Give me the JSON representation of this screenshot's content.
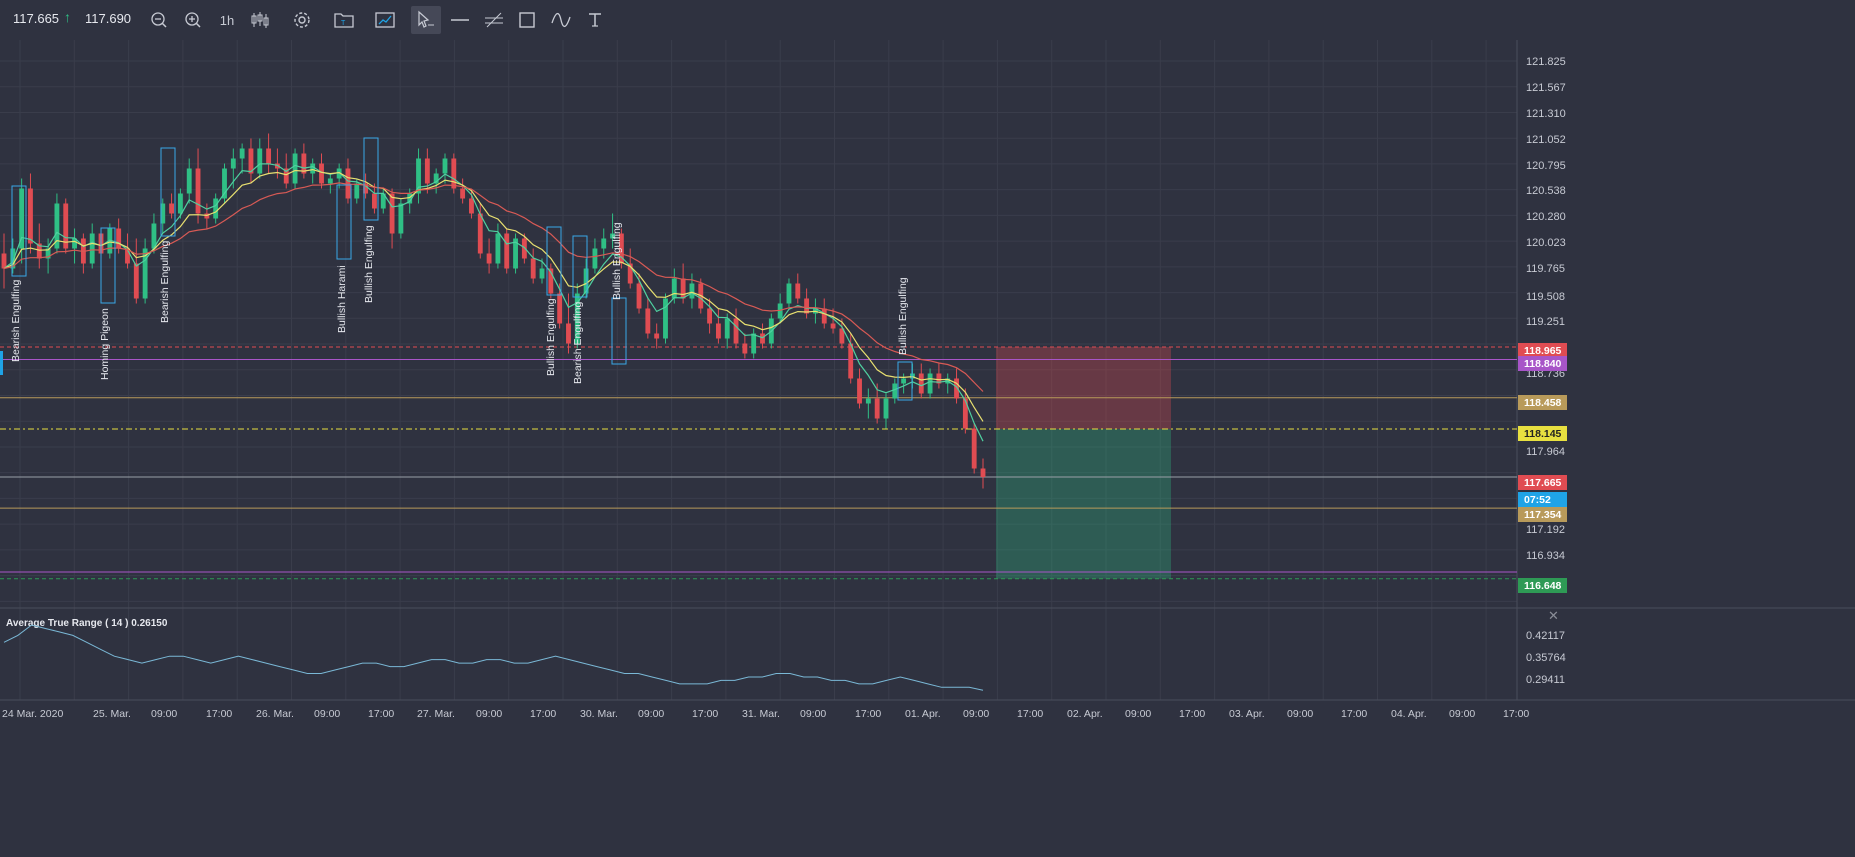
{
  "toolbar": {
    "bid": "117.665",
    "ask": "117.690",
    "timeframe": "1h",
    "icons": [
      "arrow-up-icon",
      "zoom-out-icon",
      "zoom-in-icon",
      "candles-icon",
      "gear-icon",
      "folder-icon",
      "chart-image-icon",
      "cursor-icon",
      "horizontal-line-icon",
      "parallel-channel-icon",
      "rectangle-icon",
      "wave-icon",
      "text-icon"
    ]
  },
  "colors": {
    "background": "#2f3240",
    "up_candle": "#2fbf85",
    "down_candle": "#e04c52",
    "ema_fast": "#4fd0a0",
    "ema_mid": "#e8e070",
    "ema_slow": "#d85a55",
    "atr_line": "#7ab8d6",
    "pattern_box": "#3aa8e8"
  },
  "price_axis": {
    "ticks": [
      "121.825",
      "121.567",
      "121.310",
      "121.052",
      "120.795",
      "120.538",
      "120.280",
      "120.023",
      "119.765",
      "119.508",
      "119.251",
      "118.736",
      "117.964",
      "117.192",
      "116.934"
    ],
    "tags": [
      {
        "label": "118.965",
        "color": "#e04c52",
        "text_color": "#ffffff"
      },
      {
        "label": "118.840",
        "color": "#a855c8",
        "text_color": "#ffffff"
      },
      {
        "label": "118.458",
        "color": "#b89a5a",
        "text_color": "#ffffff"
      },
      {
        "label": "118.145",
        "color": "#e8e040",
        "text_color": "#222222"
      },
      {
        "label": "117.665",
        "color": "#e04c52",
        "text_color": "#ffffff"
      },
      {
        "label": "07:52",
        "color": "#1fa3e6",
        "text_color": "#ffffff"
      },
      {
        "label": "117.354",
        "color": "#b89a5a",
        "text_color": "#ffffff"
      },
      {
        "label": "116.648",
        "color": "#2e9a55",
        "text_color": "#ffffff"
      }
    ]
  },
  "time_axis": [
    "24 Mar. 2020",
    "25. Mar.",
    "09:00",
    "17:00",
    "26. Mar.",
    "09:00",
    "17:00",
    "27. Mar.",
    "09:00",
    "17:00",
    "30. Mar.",
    "09:00",
    "17:00",
    "31. Mar.",
    "09:00",
    "17:00",
    "01. Apr.",
    "09:00",
    "17:00",
    "02. Apr.",
    "09:00",
    "17:00",
    "03. Apr.",
    "09:00",
    "17:00",
    "04. Apr.",
    "09:00",
    "17:00"
  ],
  "patterns": [
    "Bearish Engulfing",
    "Homing Pigeon",
    "Bearish Engulfing",
    "Bullish Harami",
    "Bullish Engulfing",
    "Bullish Engulfing",
    "Bearish Engulfing",
    "Bullish Engulfing",
    "Bullish Engulfing"
  ],
  "indicator": {
    "label": "Average True Range ( 14 ) 0.26150",
    "ticks": [
      "0.42117",
      "0.35764",
      "0.29411"
    ],
    "close_icon": "close-icon"
  },
  "chart_data": {
    "type": "candlestick",
    "instrument_last": 117.665,
    "ylim": [
      116.6,
      122.0
    ],
    "candles": [
      [
        119.9,
        120.1,
        119.55,
        119.75
      ],
      [
        119.75,
        120.05,
        119.7,
        119.95
      ],
      [
        119.95,
        120.65,
        119.8,
        120.55
      ],
      [
        120.55,
        120.7,
        119.9,
        120.0
      ],
      [
        120.0,
        120.2,
        119.75,
        119.85
      ],
      [
        119.85,
        120.05,
        119.7,
        119.95
      ],
      [
        119.95,
        120.5,
        119.9,
        120.4
      ],
      [
        120.4,
        120.45,
        119.9,
        119.95
      ],
      [
        119.95,
        120.15,
        119.8,
        120.05
      ],
      [
        120.05,
        120.1,
        119.7,
        119.8
      ],
      [
        119.8,
        120.2,
        119.75,
        120.1
      ],
      [
        120.1,
        120.15,
        119.85,
        119.9
      ],
      [
        119.9,
        120.2,
        119.85,
        120.15
      ],
      [
        120.15,
        120.25,
        119.9,
        119.95
      ],
      [
        119.95,
        120.1,
        119.75,
        119.8
      ],
      [
        119.8,
        120.05,
        119.4,
        119.45
      ],
      [
        119.45,
        120.05,
        119.4,
        119.95
      ],
      [
        119.95,
        120.3,
        119.9,
        120.2
      ],
      [
        120.2,
        120.45,
        120.1,
        120.4
      ],
      [
        120.4,
        120.5,
        120.25,
        120.3
      ],
      [
        120.3,
        120.55,
        120.25,
        120.5
      ],
      [
        120.5,
        120.85,
        120.4,
        120.75
      ],
      [
        120.75,
        120.95,
        120.2,
        120.3
      ],
      [
        120.3,
        120.4,
        120.15,
        120.25
      ],
      [
        120.25,
        120.5,
        120.2,
        120.45
      ],
      [
        120.45,
        120.8,
        120.4,
        120.75
      ],
      [
        120.75,
        120.95,
        120.55,
        120.85
      ],
      [
        120.85,
        121.0,
        120.7,
        120.95
      ],
      [
        120.95,
        121.05,
        120.6,
        120.7
      ],
      [
        120.7,
        121.05,
        120.65,
        120.95
      ],
      [
        120.95,
        121.1,
        120.7,
        120.8
      ],
      [
        120.8,
        120.95,
        120.65,
        120.75
      ],
      [
        120.75,
        120.9,
        120.55,
        120.6
      ],
      [
        120.6,
        120.95,
        120.55,
        120.9
      ],
      [
        120.9,
        121.0,
        120.65,
        120.7
      ],
      [
        120.7,
        120.85,
        120.6,
        120.8
      ],
      [
        120.8,
        120.9,
        120.55,
        120.6
      ],
      [
        120.6,
        120.7,
        120.5,
        120.65
      ],
      [
        120.65,
        120.8,
        120.55,
        120.75
      ],
      [
        120.75,
        120.85,
        120.4,
        120.45
      ],
      [
        120.45,
        120.65,
        120.4,
        120.6
      ],
      [
        120.6,
        120.7,
        120.45,
        120.5
      ],
      [
        120.5,
        120.6,
        120.3,
        120.35
      ],
      [
        120.35,
        120.55,
        120.3,
        120.5
      ],
      [
        120.5,
        120.55,
        119.95,
        120.1
      ],
      [
        120.1,
        120.45,
        120.05,
        120.4
      ],
      [
        120.4,
        120.55,
        120.3,
        120.5
      ],
      [
        120.5,
        120.95,
        120.4,
        120.85
      ],
      [
        120.85,
        120.95,
        120.5,
        120.6
      ],
      [
        120.6,
        120.75,
        120.5,
        120.7
      ],
      [
        120.7,
        120.9,
        120.6,
        120.85
      ],
      [
        120.85,
        120.9,
        120.5,
        120.55
      ],
      [
        120.55,
        120.65,
        120.4,
        120.45
      ],
      [
        120.45,
        120.55,
        120.25,
        120.3
      ],
      [
        120.3,
        120.4,
        119.85,
        119.9
      ],
      [
        119.9,
        120.05,
        119.7,
        119.8
      ],
      [
        119.8,
        120.2,
        119.75,
        120.1
      ],
      [
        120.1,
        120.15,
        119.7,
        119.75
      ],
      [
        119.75,
        120.1,
        119.7,
        120.05
      ],
      [
        120.05,
        120.1,
        119.8,
        119.85
      ],
      [
        119.85,
        119.95,
        119.6,
        119.65
      ],
      [
        119.65,
        119.85,
        119.6,
        119.75
      ],
      [
        119.75,
        119.8,
        119.45,
        119.5
      ],
      [
        119.5,
        119.6,
        119.15,
        119.2
      ],
      [
        119.2,
        119.5,
        118.9,
        119.0
      ],
      [
        119.0,
        119.6,
        118.95,
        119.5
      ],
      [
        119.5,
        119.85,
        119.45,
        119.75
      ],
      [
        119.75,
        120.05,
        119.7,
        119.95
      ],
      [
        119.95,
        120.15,
        119.85,
        120.05
      ],
      [
        120.05,
        120.3,
        119.95,
        120.1
      ],
      [
        120.1,
        120.15,
        119.75,
        119.8
      ],
      [
        119.8,
        119.95,
        119.55,
        119.6
      ],
      [
        119.6,
        119.7,
        119.3,
        119.35
      ],
      [
        119.35,
        119.45,
        119.05,
        119.1
      ],
      [
        119.1,
        119.2,
        118.95,
        119.05
      ],
      [
        119.05,
        119.5,
        119.0,
        119.45
      ],
      [
        119.45,
        119.75,
        119.4,
        119.65
      ],
      [
        119.65,
        119.8,
        119.4,
        119.45
      ],
      [
        119.45,
        119.7,
        119.35,
        119.6
      ],
      [
        119.6,
        119.65,
        119.3,
        119.35
      ],
      [
        119.35,
        119.45,
        119.1,
        119.2
      ],
      [
        119.2,
        119.35,
        119.0,
        119.05
      ],
      [
        119.05,
        119.3,
        118.95,
        119.25
      ],
      [
        119.25,
        119.35,
        118.95,
        119.0
      ],
      [
        119.0,
        119.1,
        118.85,
        118.9
      ],
      [
        118.9,
        119.15,
        118.85,
        119.1
      ],
      [
        119.1,
        119.2,
        118.95,
        119.0
      ],
      [
        119.0,
        119.3,
        118.95,
        119.25
      ],
      [
        119.25,
        119.5,
        119.2,
        119.4
      ],
      [
        119.4,
        119.65,
        119.35,
        119.6
      ],
      [
        119.6,
        119.7,
        119.4,
        119.45
      ],
      [
        119.45,
        119.55,
        119.25,
        119.3
      ],
      [
        119.3,
        119.45,
        119.2,
        119.35
      ],
      [
        119.35,
        119.45,
        119.15,
        119.2
      ],
      [
        119.2,
        119.35,
        119.1,
        119.15
      ],
      [
        119.15,
        119.25,
        118.95,
        119.0
      ],
      [
        119.0,
        119.1,
        118.6,
        118.65
      ],
      [
        118.65,
        118.75,
        118.35,
        118.4
      ],
      [
        118.4,
        118.55,
        118.25,
        118.45
      ],
      [
        118.45,
        118.6,
        118.2,
        118.25
      ],
      [
        118.25,
        118.5,
        118.15,
        118.45
      ],
      [
        118.45,
        118.65,
        118.4,
        118.6
      ],
      [
        118.6,
        118.7,
        118.5,
        118.65
      ],
      [
        118.65,
        118.8,
        118.55,
        118.7
      ],
      [
        118.7,
        118.8,
        118.45,
        118.5
      ],
      [
        118.5,
        118.75,
        118.45,
        118.7
      ],
      [
        118.7,
        118.8,
        118.55,
        118.6
      ],
      [
        118.6,
        118.7,
        118.5,
        118.65
      ],
      [
        118.65,
        118.75,
        118.4,
        118.45
      ],
      [
        118.45,
        118.55,
        118.1,
        118.15
      ],
      [
        118.15,
        118.2,
        117.7,
        117.75
      ],
      [
        117.75,
        117.85,
        117.55,
        117.665
      ]
    ],
    "atr_values": [
      0.4,
      0.42,
      0.45,
      0.44,
      0.43,
      0.42,
      0.4,
      0.38,
      0.36,
      0.35,
      0.34,
      0.35,
      0.36,
      0.36,
      0.35,
      0.34,
      0.35,
      0.36,
      0.35,
      0.34,
      0.33,
      0.32,
      0.31,
      0.31,
      0.32,
      0.33,
      0.34,
      0.34,
      0.33,
      0.33,
      0.34,
      0.35,
      0.35,
      0.34,
      0.34,
      0.35,
      0.35,
      0.34,
      0.34,
      0.35,
      0.36,
      0.35,
      0.34,
      0.33,
      0.32,
      0.31,
      0.31,
      0.3,
      0.29,
      0.28,
      0.28,
      0.28,
      0.29,
      0.29,
      0.3,
      0.3,
      0.31,
      0.31,
      0.3,
      0.3,
      0.29,
      0.29,
      0.28,
      0.28,
      0.29,
      0.3,
      0.29,
      0.28,
      0.27,
      0.27,
      0.27,
      0.2615
    ],
    "horizontal_levels": [
      {
        "price": 118.965,
        "color": "#e04c52",
        "style": "dashed"
      },
      {
        "price": 118.84,
        "color": "#a855c8",
        "style": "solid"
      },
      {
        "price": 118.458,
        "color": "#b89a5a",
        "style": "solid"
      },
      {
        "price": 118.145,
        "color": "#e8e040",
        "style": "dashdot"
      },
      {
        "price": 117.665,
        "color": "#9aa0a8",
        "style": "solid"
      },
      {
        "price": 117.354,
        "color": "#b89a5a",
        "style": "solid"
      },
      {
        "price": 116.715,
        "color": "#a855c8",
        "style": "solid"
      },
      {
        "price": 116.648,
        "color": "#2e9a55",
        "style": "dashed"
      }
    ],
    "position_tool": {
      "entry": 118.145,
      "stop": 118.965,
      "target": 116.648
    }
  }
}
